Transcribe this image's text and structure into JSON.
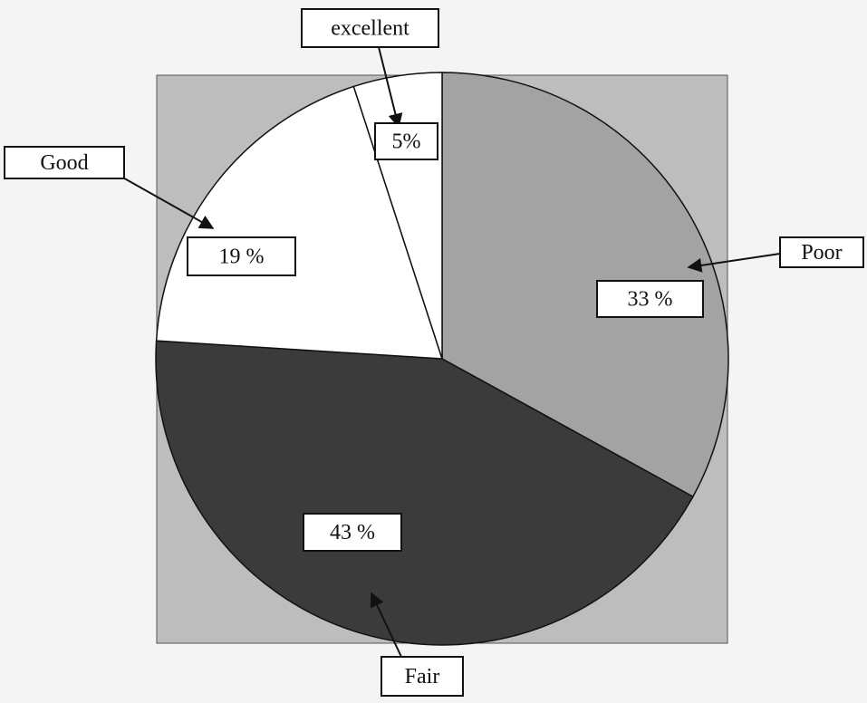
{
  "chart_data": {
    "type": "pie",
    "categories": [
      "Poor",
      "Fair",
      "Good",
      "excellent"
    ],
    "values": [
      33,
      43,
      19,
      5
    ],
    "value_labels": [
      "33 %",
      "43 %",
      "19 %",
      "5%"
    ],
    "colors": [
      "#a3a3a3",
      "#3b3b3b",
      "#ffffff",
      "#ffffff"
    ],
    "background": "#bdbdbd"
  }
}
